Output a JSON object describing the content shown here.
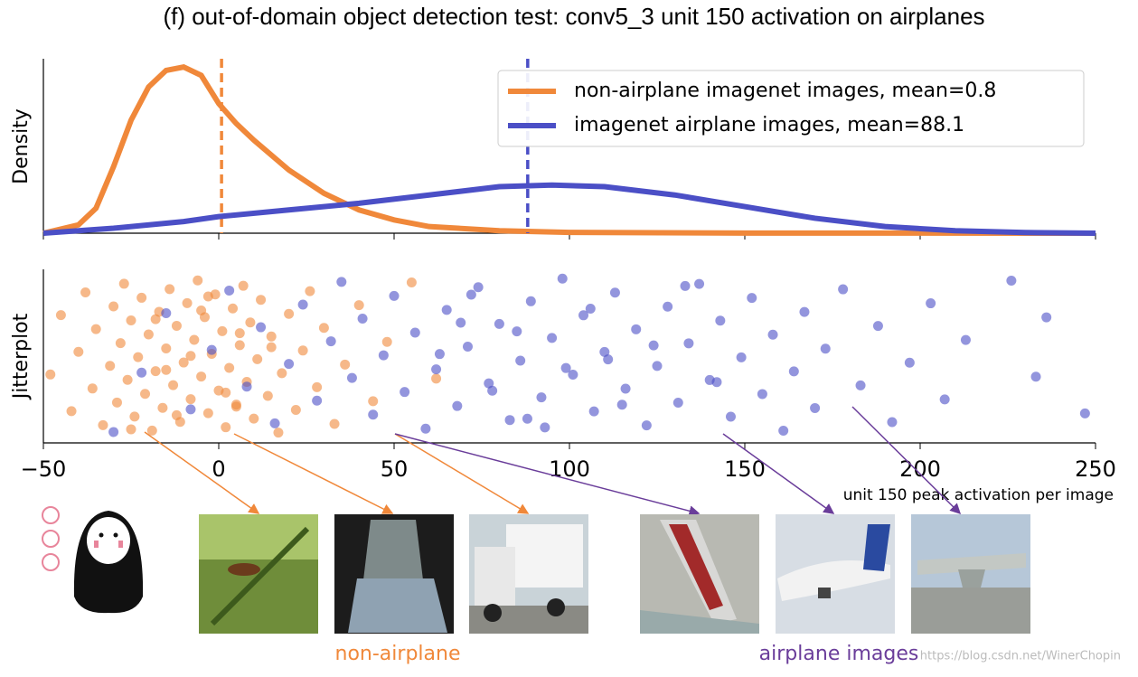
{
  "chart_data": [
    {
      "type": "density",
      "title": "(f) out-of-domain object detection test: conv5_3 unit 150 activation on airplanes",
      "y_label": "Density",
      "xlim": [
        -50,
        250
      ],
      "xticks": [
        -50,
        0,
        50,
        100,
        150,
        200,
        250
      ],
      "ylim": [
        0,
        1.05
      ],
      "legend": "upper right",
      "series": [
        {
          "name": "non-airplane imagenet images, mean=0.8",
          "color": "#f0883a",
          "mean": 0.8,
          "x": [
            -50,
            -40,
            -35,
            -30,
            -25,
            -20,
            -15,
            -10,
            -5,
            0,
            5,
            10,
            20,
            30,
            40,
            50,
            60,
            80,
            100,
            150,
            250
          ],
          "values": [
            0,
            0.05,
            0.15,
            0.4,
            0.68,
            0.88,
            0.98,
            1.0,
            0.95,
            0.78,
            0.66,
            0.56,
            0.38,
            0.24,
            0.14,
            0.08,
            0.04,
            0.015,
            0.005,
            0.001,
            0
          ]
        },
        {
          "name": "imagenet airplane images, mean=88.1",
          "color": "#4b4fc6",
          "mean": 88.1,
          "x": [
            -50,
            -30,
            -10,
            0,
            20,
            40,
            60,
            80,
            95,
            110,
            130,
            150,
            170,
            190,
            210,
            230,
            250
          ],
          "values": [
            0,
            0.03,
            0.07,
            0.1,
            0.14,
            0.18,
            0.23,
            0.28,
            0.29,
            0.28,
            0.23,
            0.16,
            0.09,
            0.04,
            0.015,
            0.004,
            0
          ]
        }
      ]
    },
    {
      "type": "jitter",
      "y_label": "Jitterplot",
      "x_label": "unit 150 peak activation per image",
      "xlim": [
        -50,
        250
      ],
      "xticks": [
        {
          "value": -50,
          "label": "−50"
        },
        0,
        50,
        100,
        150,
        200,
        250
      ],
      "series": [
        {
          "color": "#f0883a",
          "x": [
            -48,
            -45,
            -42,
            -40,
            -38,
            -36,
            -35,
            -33,
            -31,
            -30,
            -29,
            -28,
            -27,
            -26,
            -25,
            -24,
            -23,
            -22,
            -21,
            -20,
            -19,
            -18,
            -17,
            -16,
            -15,
            -14,
            -13,
            -12,
            -11,
            -10,
            -9,
            -8,
            -7,
            -6,
            -5,
            -4,
            -3,
            -2,
            -1,
            0,
            1,
            2,
            3,
            4,
            5,
            6,
            7,
            8,
            9,
            10,
            11,
            12,
            14,
            15,
            17,
            18,
            20,
            22,
            24,
            26,
            28,
            30,
            33,
            36,
            40,
            44,
            48,
            55,
            62,
            -18,
            -12,
            -8,
            -3,
            2,
            6,
            -25,
            -15,
            -5,
            5,
            15
          ]
        },
        {
          "color": "#4b4fc6",
          "x": [
            -30,
            -22,
            -15,
            -8,
            -2,
            3,
            8,
            12,
            16,
            20,
            24,
            28,
            32,
            35,
            38,
            41,
            44,
            47,
            50,
            53,
            56,
            59,
            62,
            65,
            68,
            71,
            74,
            77,
            80,
            83,
            86,
            89,
            92,
            95,
            98,
            101,
            104,
            107,
            110,
            113,
            116,
            119,
            122,
            125,
            128,
            131,
            134,
            137,
            140,
            143,
            146,
            149,
            152,
            155,
            158,
            161,
            164,
            167,
            170,
            173,
            178,
            183,
            188,
            192,
            197,
            203,
            207,
            213,
            226,
            233,
            236,
            247,
            63,
            72,
            78,
            85,
            93,
            99,
            106,
            115,
            124,
            133,
            142,
            69,
            88,
            111
          ]
        }
      ]
    }
  ],
  "annotations": {
    "non_airplane": "non-airplane",
    "airplane": "airplane images"
  },
  "watermark": "https://blog.csdn.net/WinerChopin"
}
